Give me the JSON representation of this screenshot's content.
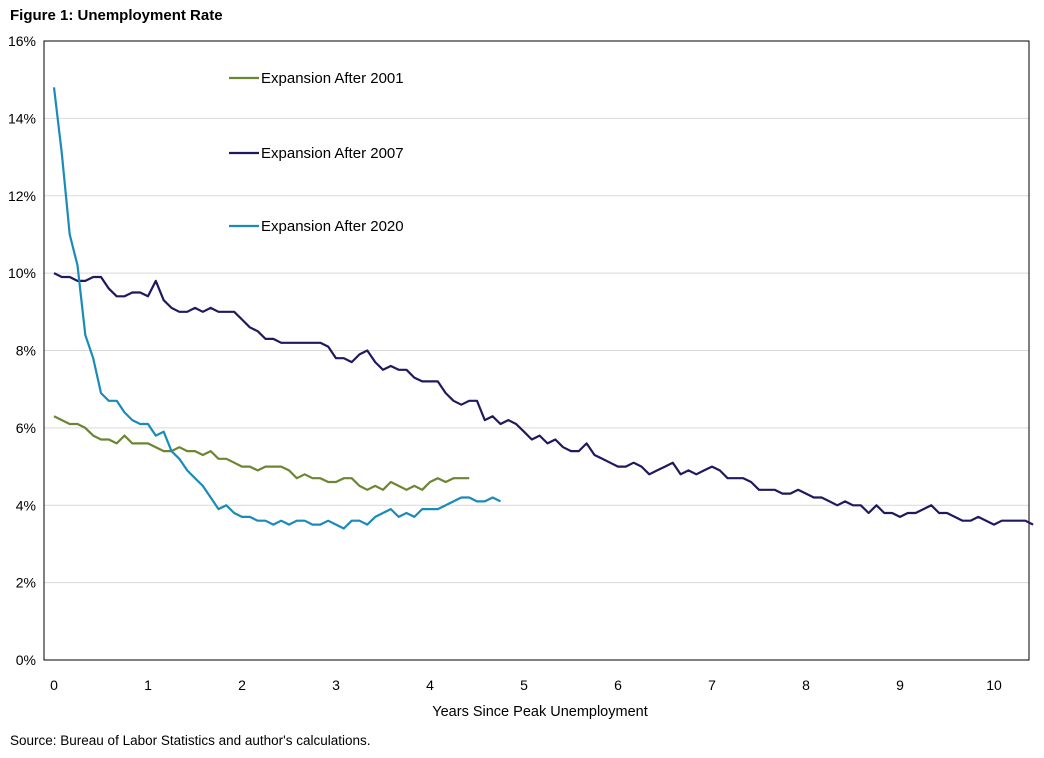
{
  "chart_data": {
    "type": "line",
    "title": "Figure 1: Unemployment Rate",
    "xlabel": "Years Since Peak Unemployment",
    "ylabel": "",
    "xlim": [
      0,
      10.4
    ],
    "ylim": [
      0,
      16
    ],
    "x_ticks": [
      0,
      1,
      2,
      3,
      4,
      5,
      6,
      7,
      8,
      9,
      10
    ],
    "y_ticks": [
      0,
      2,
      4,
      6,
      8,
      10,
      12,
      14,
      16
    ],
    "y_tick_suffix": "%",
    "grid": "horizontal",
    "x_step": 0.08333,
    "series": [
      {
        "name": "Expansion After 2001",
        "color": "#6b8632",
        "values": [
          6.3,
          6.2,
          6.1,
          6.1,
          6.0,
          5.8,
          5.7,
          5.7,
          5.6,
          5.8,
          5.6,
          5.6,
          5.6,
          5.5,
          5.4,
          5.4,
          5.5,
          5.4,
          5.4,
          5.3,
          5.4,
          5.2,
          5.2,
          5.1,
          5.0,
          5.0,
          4.9,
          5.0,
          5.0,
          5.0,
          4.9,
          4.7,
          4.8,
          4.7,
          4.7,
          4.6,
          4.6,
          4.7,
          4.7,
          4.5,
          4.4,
          4.5,
          4.4,
          4.6,
          4.5,
          4.4,
          4.5,
          4.4,
          4.6,
          4.7,
          4.6,
          4.7,
          4.7,
          4.7
        ]
      },
      {
        "name": "Expansion After 2007",
        "color": "#1f1a5e",
        "values": [
          10.0,
          9.9,
          9.9,
          9.8,
          9.8,
          9.9,
          9.9,
          9.6,
          9.4,
          9.4,
          9.5,
          9.5,
          9.4,
          9.8,
          9.3,
          9.1,
          9.0,
          9.0,
          9.1,
          9.0,
          9.1,
          9.0,
          9.0,
          9.0,
          8.8,
          8.6,
          8.5,
          8.3,
          8.3,
          8.2,
          8.2,
          8.2,
          8.2,
          8.2,
          8.2,
          8.1,
          7.8,
          7.8,
          7.7,
          7.9,
          8.0,
          7.7,
          7.5,
          7.6,
          7.5,
          7.5,
          7.3,
          7.2,
          7.2,
          7.2,
          6.9,
          6.7,
          6.6,
          6.7,
          6.7,
          6.2,
          6.3,
          6.1,
          6.2,
          6.1,
          5.9,
          5.7,
          5.8,
          5.6,
          5.7,
          5.5,
          5.4,
          5.4,
          5.6,
          5.3,
          5.2,
          5.1,
          5.0,
          5.0,
          5.1,
          5.0,
          4.8,
          4.9,
          5.0,
          5.1,
          4.8,
          4.9,
          4.8,
          4.9,
          5.0,
          4.9,
          4.7,
          4.7,
          4.7,
          4.6,
          4.4,
          4.4,
          4.4,
          4.3,
          4.3,
          4.4,
          4.3,
          4.2,
          4.2,
          4.1,
          4.0,
          4.1,
          4.0,
          4.0,
          3.8,
          4.0,
          3.8,
          3.8,
          3.7,
          3.8,
          3.8,
          3.9,
          4.0,
          3.8,
          3.8,
          3.7,
          3.6,
          3.6,
          3.7,
          3.6,
          3.5,
          3.6,
          3.6,
          3.6,
          3.6,
          3.5
        ]
      },
      {
        "name": "Expansion After 2020",
        "color": "#1a8bb8",
        "values": [
          14.8,
          13.1,
          11.0,
          10.2,
          8.4,
          7.8,
          6.9,
          6.7,
          6.7,
          6.4,
          6.2,
          6.1,
          6.1,
          5.8,
          5.9,
          5.4,
          5.2,
          4.9,
          4.7,
          4.5,
          4.2,
          3.9,
          4.0,
          3.8,
          3.7,
          3.7,
          3.6,
          3.6,
          3.5,
          3.6,
          3.5,
          3.6,
          3.6,
          3.5,
          3.5,
          3.6,
          3.5,
          3.4,
          3.6,
          3.6,
          3.5,
          3.7,
          3.8,
          3.9,
          3.7,
          3.8,
          3.7,
          3.9,
          3.9,
          3.9,
          4.0,
          4.1,
          4.2,
          4.2,
          4.1,
          4.1,
          4.2,
          4.1
        ]
      }
    ],
    "legend_placement": "top-left, inside plot"
  },
  "source": "Source: Bureau of Labor Statistics and author's calculations."
}
